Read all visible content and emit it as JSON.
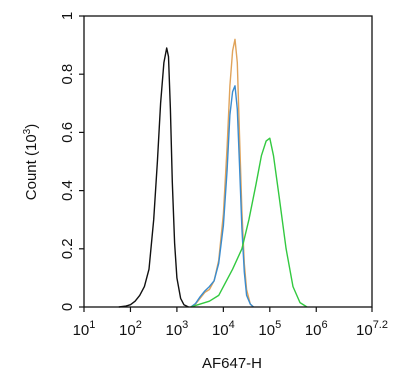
{
  "chart_data": {
    "type": "line",
    "xlabel": "AF647-H",
    "ylabel": "Count (10",
    "ylabel_sup": "3",
    "ylabel_close": ")",
    "xscale": "log",
    "xlim": [
      1,
      7.2
    ],
    "ylim": [
      0,
      1
    ],
    "xticks": [
      {
        "base": "10",
        "exp": "1",
        "value": 1
      },
      {
        "base": "10",
        "exp": "2",
        "value": 2
      },
      {
        "base": "10",
        "exp": "3",
        "value": 3
      },
      {
        "base": "10",
        "exp": "4",
        "value": 4
      },
      {
        "base": "10",
        "exp": "5",
        "value": 5
      },
      {
        "base": "10",
        "exp": "6",
        "value": 6
      },
      {
        "base": "10",
        "exp": "7.2",
        "value": 7.2
      }
    ],
    "yticks": [
      {
        "label": "0",
        "value": 0
      },
      {
        "label": "0.2",
        "value": 0.2
      },
      {
        "label": "0.4",
        "value": 0.4
      },
      {
        "label": "0.6",
        "value": 0.6
      },
      {
        "label": "0.8",
        "value": 0.8
      },
      {
        "label": "1",
        "value": 1
      }
    ],
    "grid": false,
    "series": [
      {
        "color": "#111111",
        "points": [
          [
            1.75,
            0
          ],
          [
            1.9,
            0.003
          ],
          [
            2.0,
            0.008
          ],
          [
            2.1,
            0.02
          ],
          [
            2.2,
            0.04
          ],
          [
            2.3,
            0.07
          ],
          [
            2.4,
            0.13
          ],
          [
            2.5,
            0.3
          ],
          [
            2.58,
            0.5
          ],
          [
            2.65,
            0.7
          ],
          [
            2.72,
            0.84
          ],
          [
            2.78,
            0.89
          ],
          [
            2.82,
            0.86
          ],
          [
            2.86,
            0.68
          ],
          [
            2.9,
            0.43
          ],
          [
            2.95,
            0.22
          ],
          [
            3.0,
            0.1
          ],
          [
            3.08,
            0.03
          ],
          [
            3.15,
            0.008
          ],
          [
            3.25,
            0
          ]
        ]
      },
      {
        "color": "#e0a35a",
        "points": [
          [
            3.3,
            0
          ],
          [
            3.4,
            0.01
          ],
          [
            3.5,
            0.03
          ],
          [
            3.6,
            0.05
          ],
          [
            3.7,
            0.06
          ],
          [
            3.8,
            0.09
          ],
          [
            3.9,
            0.16
          ],
          [
            4.0,
            0.32
          ],
          [
            4.08,
            0.55
          ],
          [
            4.14,
            0.76
          ],
          [
            4.2,
            0.88
          ],
          [
            4.25,
            0.92
          ],
          [
            4.3,
            0.84
          ],
          [
            4.35,
            0.58
          ],
          [
            4.4,
            0.33
          ],
          [
            4.45,
            0.15
          ],
          [
            4.5,
            0.06
          ],
          [
            4.58,
            0.01
          ],
          [
            4.65,
            0
          ]
        ]
      },
      {
        "color": "#3a8ccf",
        "points": [
          [
            3.3,
            0
          ],
          [
            3.4,
            0.012
          ],
          [
            3.5,
            0.035
          ],
          [
            3.6,
            0.055
          ],
          [
            3.7,
            0.07
          ],
          [
            3.8,
            0.09
          ],
          [
            3.9,
            0.15
          ],
          [
            4.0,
            0.28
          ],
          [
            4.08,
            0.47
          ],
          [
            4.14,
            0.66
          ],
          [
            4.2,
            0.74
          ],
          [
            4.25,
            0.76
          ],
          [
            4.3,
            0.68
          ],
          [
            4.35,
            0.48
          ],
          [
            4.4,
            0.27
          ],
          [
            4.45,
            0.12
          ],
          [
            4.5,
            0.04
          ],
          [
            4.58,
            0.01
          ],
          [
            4.65,
            0
          ]
        ]
      },
      {
        "color": "#33c940",
        "points": [
          [
            3.3,
            0
          ],
          [
            3.5,
            0.01
          ],
          [
            3.7,
            0.02
          ],
          [
            3.9,
            0.04
          ],
          [
            4.0,
            0.07
          ],
          [
            4.2,
            0.13
          ],
          [
            4.4,
            0.2
          ],
          [
            4.55,
            0.3
          ],
          [
            4.7,
            0.42
          ],
          [
            4.82,
            0.52
          ],
          [
            4.92,
            0.57
          ],
          [
            5.0,
            0.58
          ],
          [
            5.08,
            0.52
          ],
          [
            5.2,
            0.38
          ],
          [
            5.35,
            0.2
          ],
          [
            5.5,
            0.07
          ],
          [
            5.65,
            0.015
          ],
          [
            5.8,
            0
          ]
        ]
      }
    ]
  }
}
